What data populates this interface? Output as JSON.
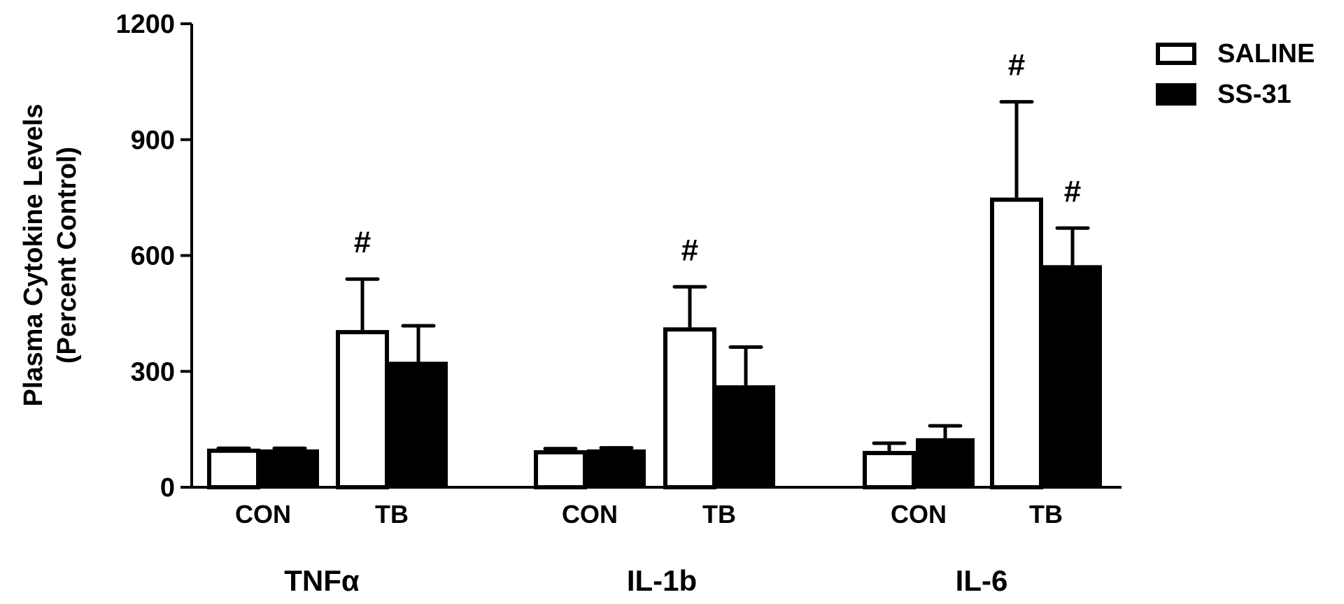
{
  "chart_data": {
    "type": "bar",
    "title": "",
    "ylabel": "Plasma Cytokine Levels (Percent Control)",
    "ylabel_lines": [
      "Plasma Cytokine Levels",
      "(Percent Control)"
    ],
    "xlabel": "",
    "ylim": [
      0,
      1200
    ],
    "yticks": [
      0,
      300,
      600,
      900,
      1200
    ],
    "grid": false,
    "legend_position": "top-right",
    "groups": [
      {
        "name": "TNFα",
        "categories": [
          "CON",
          "TB"
        ]
      },
      {
        "name": "IL-1b",
        "categories": [
          "CON",
          "TB"
        ]
      },
      {
        "name": "IL-6",
        "categories": [
          "CON",
          "TB"
        ]
      }
    ],
    "categories": [
      "TNFα CON",
      "TNFα TB",
      "IL-1b CON",
      "IL-1b TB",
      "IL-6 CON",
      "IL-6 TB"
    ],
    "series": [
      {
        "name": "SALINE",
        "fill": "#ffffff",
        "stroke": "#000000",
        "values": [
          100,
          407,
          96,
          414,
          94,
          750
        ],
        "error_upper": [
          101,
          539,
          100,
          519,
          114,
          998
        ]
      },
      {
        "name": "SS-31",
        "fill": "#000000",
        "stroke": "#000000",
        "values": [
          98,
          325,
          98,
          264,
          127,
          575
        ],
        "error_upper": [
          101,
          418,
          102,
          363,
          159,
          671
        ]
      }
    ],
    "annotations": [
      {
        "text": "#",
        "group": "TNFα",
        "category": "TB",
        "series": "SALINE"
      },
      {
        "text": "#",
        "group": "IL-1b",
        "category": "TB",
        "series": "SALINE"
      },
      {
        "text": "#",
        "group": "IL-6",
        "category": "TB",
        "series": "SALINE"
      },
      {
        "text": "#",
        "group": "IL-6",
        "category": "TB",
        "series": "SS-31"
      }
    ]
  },
  "legend": {
    "items": [
      {
        "label": "SALINE",
        "filled": false
      },
      {
        "label": "SS-31",
        "filled": true
      }
    ]
  },
  "axis": {
    "ticks": [
      "1200",
      "900",
      "600",
      "300",
      "0"
    ]
  },
  "groups": [
    "TNFα",
    "IL-1b",
    "IL-6"
  ],
  "category_labels": [
    "CON",
    "TB",
    "CON",
    "TB",
    "CON",
    "TB"
  ],
  "sig_mark": "#"
}
